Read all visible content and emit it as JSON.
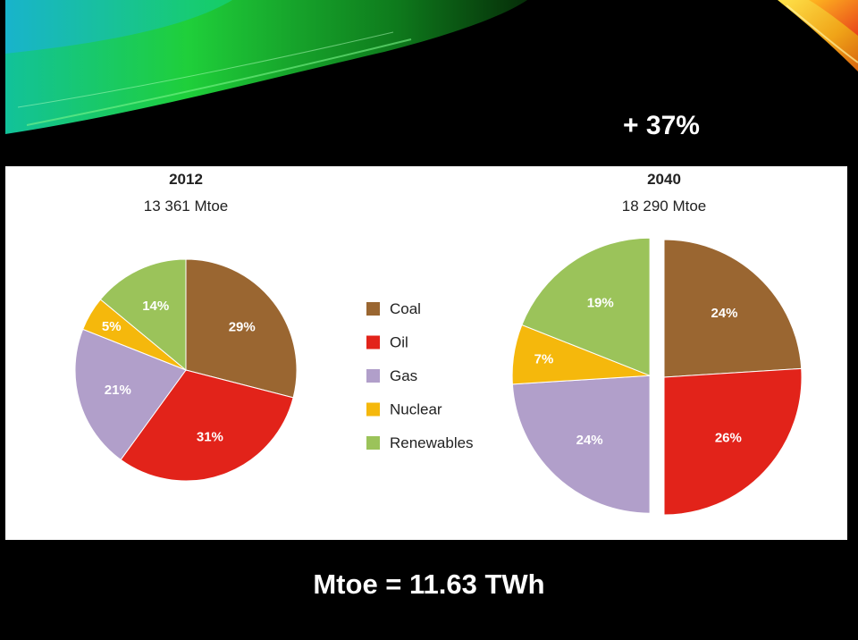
{
  "slide": {
    "growth_label": "+ 37%",
    "footer": "Mtoe = 11.63 TWh"
  },
  "chart_data": {
    "type": "pie",
    "legend_position": "center",
    "categories": [
      {
        "name": "Coal",
        "color": "#9a6631"
      },
      {
        "name": "Oil",
        "color": "#e2231a"
      },
      {
        "name": "Gas",
        "color": "#b19fca"
      },
      {
        "name": "Nuclear",
        "color": "#f5b80c"
      },
      {
        "name": "Renewables",
        "color": "#9bc35a"
      }
    ],
    "pies": [
      {
        "title": "2012",
        "subtitle": "13 361 Mtoe",
        "values": [
          29,
          31,
          21,
          5,
          14
        ],
        "labels": [
          "29%",
          "31%",
          "21%",
          "5%",
          "14%"
        ]
      },
      {
        "title": "2040",
        "subtitle": "18 290 Mtoe",
        "values": [
          24,
          26,
          24,
          7,
          19
        ],
        "labels": [
          "24%",
          "26%",
          "24%",
          "7%",
          "19%"
        ],
        "exploded": [
          "Gas",
          "Nuclear",
          "Renewables"
        ]
      }
    ]
  }
}
